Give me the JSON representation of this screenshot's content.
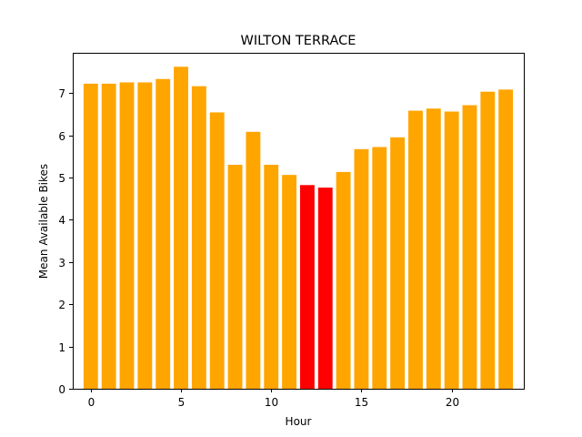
{
  "chart_data": {
    "type": "bar",
    "title": "WILTON TERRACE",
    "xlabel": "Hour",
    "ylabel": "Mean Available Bikes",
    "categories": [
      0,
      1,
      2,
      3,
      4,
      5,
      6,
      7,
      8,
      9,
      10,
      11,
      12,
      13,
      14,
      15,
      16,
      17,
      18,
      19,
      20,
      21,
      22,
      23
    ],
    "values": [
      7.22,
      7.22,
      7.25,
      7.25,
      7.33,
      7.62,
      7.16,
      6.54,
      5.3,
      6.08,
      5.3,
      5.06,
      4.82,
      4.76,
      5.13,
      5.67,
      5.72,
      5.95,
      6.58,
      6.63,
      6.56,
      6.71,
      7.03,
      7.08
    ],
    "bar_colors": [
      "#ffa500",
      "#ffa500",
      "#ffa500",
      "#ffa500",
      "#ffa500",
      "#ffa500",
      "#ffa500",
      "#ffa500",
      "#ffa500",
      "#ffa500",
      "#ffa500",
      "#ffa500",
      "#ff0000",
      "#ff0000",
      "#ffa500",
      "#ffa500",
      "#ffa500",
      "#ffa500",
      "#ffa500",
      "#ffa500",
      "#ffa500",
      "#ffa500",
      "#ffa500",
      "#ffa500"
    ],
    "xlim": [
      -1.0,
      24.0
    ],
    "ylim": [
      0,
      7.95
    ],
    "xticks": [
      0,
      5,
      10,
      15,
      20
    ],
    "yticks": [
      0,
      1,
      2,
      3,
      4,
      5,
      6,
      7
    ],
    "grid": false,
    "legend": "none"
  }
}
